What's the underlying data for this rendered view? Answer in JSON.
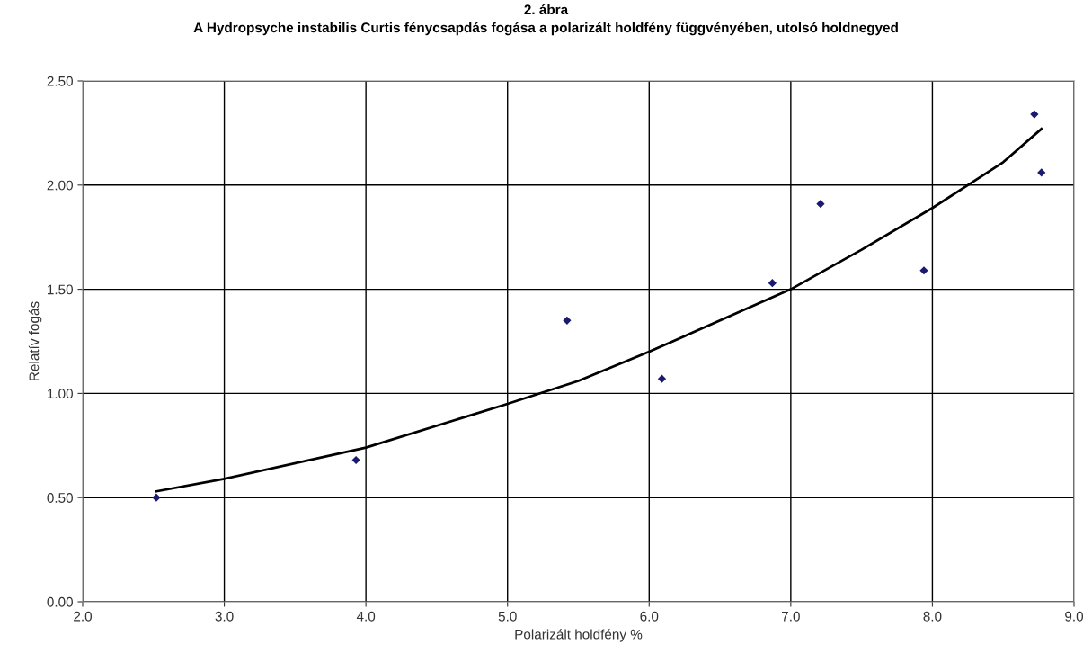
{
  "chart_data": {
    "type": "scatter",
    "title": "2. ábra",
    "subtitle": "A Hydropsyche instabilis Curtis fénycsapdás fogása a polarizált holdfény függvényében, utolsó holdnegyed",
    "xlabel": "Polarizált holdfény %",
    "ylabel": "Relatív fogás",
    "series": [
      {
        "color": "#1a1a6e",
        "marker": "diamond",
        "x": [
          2.52,
          3.93,
          5.42,
          6.09,
          6.87,
          7.21,
          7.94,
          8.72,
          8.77
        ],
        "values": [
          0.5,
          0.68,
          1.35,
          1.07,
          1.53,
          1.91,
          1.59,
          2.34,
          2.06
        ]
      },
      {
        "type": "line",
        "color": "#000000",
        "line_style": "solid",
        "x": [
          2.52,
          3.0,
          4.0,
          5.0,
          5.5,
          6.0,
          6.5,
          7.0,
          7.5,
          8.0,
          8.25,
          8.5,
          8.77
        ],
        "values": [
          0.53,
          0.59,
          0.74,
          0.95,
          1.06,
          1.2,
          1.35,
          1.5,
          1.69,
          1.89,
          2.0,
          2.11,
          2.27
        ]
      }
    ],
    "xlim": [
      2.0,
      9.0
    ],
    "xticks": [
      {
        "value": 2,
        "label": "2.0"
      },
      {
        "value": 3,
        "label": "3.0"
      },
      {
        "value": 4,
        "label": "4.0"
      },
      {
        "value": 5,
        "label": "5.0"
      },
      {
        "value": 6,
        "label": "6.0"
      },
      {
        "value": 7,
        "label": "7.0"
      },
      {
        "value": 8,
        "label": "8.0"
      },
      {
        "value": 9,
        "label": "9.0"
      }
    ],
    "ylim": [
      0,
      2.5
    ],
    "yticks": [
      {
        "value": 0,
        "label": "0.00"
      },
      {
        "value": 0.5,
        "label": "0.50"
      },
      {
        "value": 1,
        "label": "1.00"
      },
      {
        "value": 1.5,
        "label": "1.50"
      },
      {
        "value": 2,
        "label": "2.00"
      },
      {
        "value": 2.5,
        "label": "2.50"
      }
    ],
    "grid": true
  }
}
